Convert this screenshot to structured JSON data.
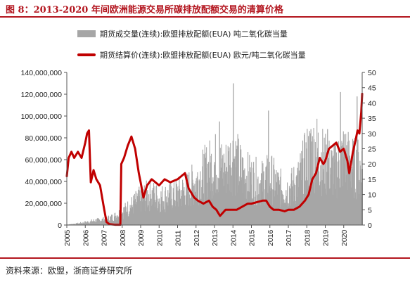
{
  "header": {
    "title": "图 8：2013-2020 年间欧洲能源交易所碳排放配额交易的清算价格"
  },
  "footer": {
    "source": "资料来源：欧盟，浙商证券研究所"
  },
  "colors": {
    "accent": "#b3151e",
    "volume_bar": "#a6a6a6",
    "price_line": "#c00000"
  },
  "chart_data": {
    "type": "bar",
    "legend": [
      "期货成交量(连续):欧盟排放配额(EUA) 吨二氧化碳当量",
      "期货结算价(连续):欧盟排放配额(EUA) 欧元/吨二氧化碳当量"
    ],
    "legend_position": "top-left",
    "xlabel": "",
    "ylabel": "",
    "xlim": [
      2005,
      2021
    ],
    "x_ticks": [
      "2005",
      "2006",
      "2007",
      "2008",
      "2009",
      "2010",
      "2011",
      "2012",
      "2013",
      "2014",
      "2015",
      "2016",
      "2017",
      "2018",
      "2019",
      "2020"
    ],
    "y_left": {
      "ylim": [
        0,
        140000000
      ],
      "ticks": [
        "0",
        "20,000,000",
        "40,000,000",
        "60,000,000",
        "80,000,000",
        "100,000,000",
        "120,000,000",
        "140,000,000"
      ]
    },
    "y_right": {
      "ylim": [
        0,
        50
      ],
      "ticks": [
        "0",
        "5",
        "10",
        "15",
        "20",
        "25",
        "30",
        "35",
        "40",
        "45",
        "50"
      ]
    },
    "grid": false,
    "series": [
      {
        "name": "期货成交量(连续):欧盟排放配额(EUA) 吨二氧化碳当量",
        "type": "bar",
        "axis": "left",
        "color": "#a6a6a6",
        "points": [
          [
            2005.0,
            500000
          ],
          [
            2005.5,
            1500000
          ],
          [
            2006.0,
            3000000
          ],
          [
            2006.5,
            5000000
          ],
          [
            2007.0,
            6000000
          ],
          [
            2007.5,
            9000000
          ],
          [
            2008.0,
            15000000
          ],
          [
            2008.5,
            22000000
          ],
          [
            2009.0,
            30000000
          ],
          [
            2009.5,
            35000000
          ],
          [
            2010.0,
            30000000
          ],
          [
            2010.5,
            32000000
          ],
          [
            2011.0,
            36000000
          ],
          [
            2011.5,
            40000000
          ],
          [
            2012.0,
            50000000
          ],
          [
            2012.5,
            60000000
          ],
          [
            2013.0,
            70000000
          ],
          [
            2013.5,
            62000000
          ],
          [
            2014.0,
            78000000
          ],
          [
            2014.5,
            58000000
          ],
          [
            2015.0,
            52000000
          ],
          [
            2015.5,
            48000000
          ],
          [
            2016.0,
            55000000
          ],
          [
            2016.5,
            42000000
          ],
          [
            2017.0,
            40000000
          ],
          [
            2017.5,
            50000000
          ],
          [
            2018.0,
            75000000
          ],
          [
            2018.5,
            85000000
          ],
          [
            2019.0,
            68000000
          ],
          [
            2019.5,
            62000000
          ],
          [
            2020.0,
            78000000
          ],
          [
            2020.5,
            65000000
          ]
        ],
        "peaks": [
          [
            2013.25,
            95000000
          ],
          [
            2014.0,
            130000000
          ],
          [
            2015.9,
            105000000
          ],
          [
            2018.2,
            88000000
          ],
          [
            2019.1,
            88000000
          ],
          [
            2019.8,
            122000000
          ],
          [
            2020.7,
            118000000
          ]
        ]
      },
      {
        "name": "期货结算价(连续):欧盟排放配额(EUA) 欧元/吨二氧化碳当量",
        "type": "line",
        "axis": "right",
        "color": "#c00000",
        "points": [
          [
            2005.0,
            16
          ],
          [
            2005.1,
            22
          ],
          [
            2005.25,
            24
          ],
          [
            2005.4,
            22
          ],
          [
            2005.6,
            24
          ],
          [
            2005.8,
            22
          ],
          [
            2006.0,
            27
          ],
          [
            2006.1,
            30
          ],
          [
            2006.2,
            31
          ],
          [
            2006.3,
            14
          ],
          [
            2006.45,
            18
          ],
          [
            2006.6,
            15
          ],
          [
            2006.8,
            13
          ],
          [
            2007.0,
            6
          ],
          [
            2007.15,
            1
          ],
          [
            2007.3,
            0.3
          ],
          [
            2007.6,
            0.1
          ],
          [
            2007.9,
            0.1
          ],
          [
            2007.95,
            20
          ],
          [
            2008.1,
            22
          ],
          [
            2008.3,
            26
          ],
          [
            2008.5,
            29
          ],
          [
            2008.7,
            25
          ],
          [
            2008.9,
            17
          ],
          [
            2009.0,
            14
          ],
          [
            2009.15,
            9
          ],
          [
            2009.35,
            13
          ],
          [
            2009.6,
            15
          ],
          [
            2010.0,
            13
          ],
          [
            2010.3,
            15
          ],
          [
            2010.6,
            14
          ],
          [
            2011.0,
            15
          ],
          [
            2011.4,
            17
          ],
          [
            2011.6,
            12
          ],
          [
            2011.9,
            9
          ],
          [
            2012.1,
            8
          ],
          [
            2012.4,
            7
          ],
          [
            2012.7,
            8
          ],
          [
            2012.9,
            6
          ],
          [
            2013.1,
            5
          ],
          [
            2013.3,
            3
          ],
          [
            2013.6,
            5
          ],
          [
            2013.9,
            5
          ],
          [
            2014.2,
            5
          ],
          [
            2014.5,
            6
          ],
          [
            2014.8,
            7
          ],
          [
            2015.0,
            7
          ],
          [
            2015.3,
            7.5
          ],
          [
            2015.6,
            8
          ],
          [
            2015.8,
            8
          ],
          [
            2016.0,
            6
          ],
          [
            2016.2,
            5
          ],
          [
            2016.5,
            5
          ],
          [
            2016.8,
            4.5
          ],
          [
            2017.0,
            5
          ],
          [
            2017.3,
            5
          ],
          [
            2017.6,
            6
          ],
          [
            2017.9,
            8
          ],
          [
            2018.1,
            10
          ],
          [
            2018.3,
            15
          ],
          [
            2018.5,
            17
          ],
          [
            2018.7,
            22
          ],
          [
            2018.9,
            20
          ],
          [
            2019.0,
            21
          ],
          [
            2019.2,
            25
          ],
          [
            2019.4,
            26
          ],
          [
            2019.6,
            27
          ],
          [
            2019.8,
            24
          ],
          [
            2020.0,
            25
          ],
          [
            2020.2,
            21
          ],
          [
            2020.3,
            17
          ],
          [
            2020.5,
            24
          ],
          [
            2020.65,
            28
          ],
          [
            2020.75,
            31
          ],
          [
            2020.85,
            30
          ],
          [
            2020.95,
            37
          ],
          [
            2021.0,
            43
          ]
        ]
      }
    ]
  }
}
